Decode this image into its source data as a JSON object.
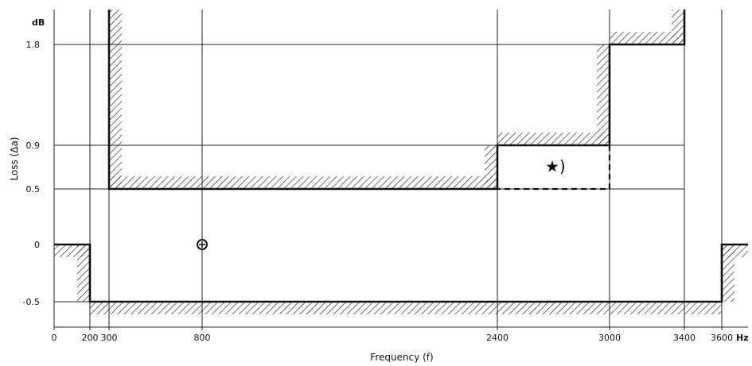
{
  "chart_data": {
    "type": "line",
    "title": "",
    "xlabel": "Frequency (f)",
    "ylabel": "Loss (Δa)",
    "x_unit": "Hz",
    "y_unit": "dB",
    "x_ticks": [
      0,
      200,
      300,
      800,
      2400,
      3000,
      3400,
      3600
    ],
    "x_tick_labels": [
      "0",
      "200",
      "300",
      "800",
      "2400",
      "3000",
      "3400",
      "3600"
    ],
    "y_ticks": [
      -0.5,
      0,
      0.5,
      0.9,
      1.8
    ],
    "y_tick_labels": [
      "-0.5",
      "0",
      "0.5",
      "0.9",
      "1.8"
    ],
    "grid": true,
    "series": [
      {
        "role": "upper-limit",
        "style": "solid",
        "points": [
          [
            300,
            2.1
          ],
          [
            300,
            0.5
          ],
          [
            2400,
            0.5
          ],
          [
            2400,
            0.9
          ],
          [
            3000,
            0.9
          ],
          [
            3000,
            1.8
          ],
          [
            3400,
            1.8
          ],
          [
            3400,
            2.1
          ]
        ]
      },
      {
        "role": "upper-limit-alternative",
        "style": "dashed",
        "points": [
          [
            3000,
            0.9
          ],
          [
            3000,
            0.5
          ],
          [
            2400,
            0.5
          ]
        ]
      },
      {
        "role": "lower-limit",
        "style": "solid",
        "points": [
          [
            0,
            0
          ],
          [
            200,
            0
          ],
          [
            200,
            -0.5
          ],
          [
            3600,
            -0.5
          ],
          [
            3600,
            0
          ],
          [
            3800,
            0
          ]
        ]
      }
    ],
    "reference_point": {
      "x": 800,
      "y": 0
    },
    "annotations": [
      {
        "text": "★)",
        "x": 2710,
        "y": 0.7
      }
    ]
  }
}
